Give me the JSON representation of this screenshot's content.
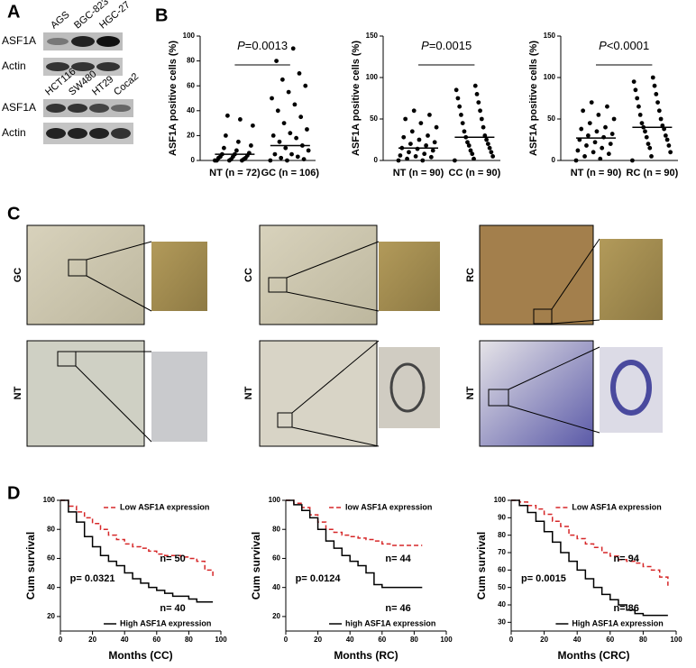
{
  "panel_labels": [
    "A",
    "B",
    "C",
    "D"
  ],
  "blots": [
    {
      "lanes": [
        "AGS",
        "BGC-823",
        "HGC-27"
      ],
      "rows": [
        "ASF1A",
        "Actin"
      ]
    },
    {
      "lanes": [
        "HCT116",
        "SW480",
        "HT29",
        "Coca2"
      ],
      "rows": [
        "ASF1A",
        "Actin"
      ]
    }
  ],
  "micrograph_labels": [
    "GC",
    "CC",
    "RC",
    "NT",
    "NT",
    "NT"
  ],
  "chart_data": [
    {
      "type": "dotplot",
      "y_label": "ASF1A positive cells (%)",
      "annotation": [
        "P",
        "=0.0013"
      ],
      "categories": [
        "NT (n = 72)",
        "GC (n = 106)"
      ],
      "values": [
        [
          0,
          0,
          0,
          0,
          1,
          1,
          2,
          2,
          3,
          3,
          4,
          5,
          5,
          6,
          8,
          10,
          12,
          15,
          20,
          28,
          33,
          36
        ],
        [
          0,
          0,
          1,
          2,
          3,
          5,
          5,
          8,
          10,
          12,
          15,
          18,
          20,
          22,
          25,
          30,
          35,
          40,
          45,
          50,
          55,
          60,
          65,
          70,
          80,
          90
        ]
      ],
      "means": [
        5,
        12
      ],
      "ylim": [
        0,
        100
      ],
      "yticks": [
        0,
        20,
        40,
        60,
        80,
        100
      ],
      "color": "#000000"
    },
    {
      "type": "dotplot",
      "y_label": "ASF1A positive cells (%)",
      "annotation": [
        "P",
        "=0.0015"
      ],
      "categories": [
        "NT (n = 90)",
        "CC (n = 90)"
      ],
      "values": [
        [
          0,
          0,
          2,
          4,
          5,
          6,
          8,
          10,
          12,
          14,
          15,
          18,
          20,
          22,
          25,
          28,
          30,
          35,
          40,
          45,
          50,
          55,
          60
        ],
        [
          0,
          2,
          5,
          8,
          10,
          12,
          15,
          18,
          20,
          22,
          25,
          28,
          30,
          35,
          40,
          45,
          50,
          55,
          60,
          65,
          70,
          75,
          80,
          85,
          90
        ]
      ],
      "means": [
        15,
        28
      ],
      "ylim": [
        0,
        150
      ],
      "yticks": [
        0,
        50,
        100,
        150
      ],
      "color": "#000000"
    },
    {
      "type": "dotplot",
      "y_label": "ASF1A positive cells (%)",
      "annotation": [
        "P",
        "<0.0001"
      ],
      "categories": [
        "NT (n = 90)",
        "RC (n = 90)"
      ],
      "values": [
        [
          0,
          2,
          5,
          8,
          10,
          12,
          15,
          18,
          20,
          22,
          25,
          28,
          30,
          32,
          35,
          38,
          40,
          45,
          50,
          55,
          60,
          65,
          70
        ],
        [
          0,
          5,
          10,
          15,
          18,
          20,
          25,
          28,
          30,
          35,
          38,
          40,
          42,
          45,
          50,
          55,
          60,
          65,
          70,
          75,
          80,
          85,
          90,
          95,
          100
        ]
      ],
      "means": [
        27,
        40
      ],
      "ylim": [
        0,
        150
      ],
      "yticks": [
        0,
        50,
        100,
        150
      ],
      "color": "#000000"
    },
    {
      "type": "survival",
      "x_label": "Months (CC)",
      "y_label": "Cum survival",
      "p_label": "p= 0.0321",
      "n_labels": [
        "n= 50",
        "n= 40"
      ],
      "series": [
        {
          "name": "Low ASF1A expression",
          "color": "#d62728",
          "line_style": "dashed",
          "x": [
            0,
            5,
            10,
            15,
            20,
            25,
            30,
            35,
            40,
            45,
            50,
            55,
            60,
            65,
            70,
            75,
            80,
            85,
            90,
            95
          ],
          "values": [
            100,
            96,
            92,
            88,
            84,
            80,
            76,
            73,
            70,
            68,
            67,
            65,
            63,
            62,
            62,
            61,
            60,
            58,
            52,
            47
          ]
        },
        {
          "name": "High ASF1A expression",
          "color": "#000000",
          "line_style": "solid",
          "x": [
            0,
            5,
            10,
            15,
            20,
            25,
            30,
            35,
            40,
            45,
            50,
            55,
            60,
            65,
            70,
            75,
            80,
            85,
            90,
            95
          ],
          "values": [
            100,
            92,
            85,
            75,
            68,
            62,
            58,
            55,
            50,
            46,
            43,
            40,
            38,
            36,
            34,
            34,
            32,
            30,
            30,
            30
          ]
        }
      ],
      "xlim": [
        0,
        100
      ],
      "xticks": [
        0,
        20,
        40,
        60,
        80,
        100
      ],
      "ylim": [
        10,
        100
      ],
      "yticks": [
        20,
        40,
        60,
        80,
        100
      ]
    },
    {
      "type": "survival",
      "x_label": "Months (RC)",
      "y_label": "Cum survival",
      "p_label": "p= 0.0124",
      "n_labels": [
        "n= 44",
        "n= 46"
      ],
      "series": [
        {
          "name": "low ASF1A expression",
          "color": "#d62728",
          "line_style": "dashed",
          "x": [
            0,
            5,
            10,
            15,
            20,
            25,
            30,
            35,
            40,
            45,
            50,
            55,
            60,
            65,
            70,
            75,
            80,
            85
          ],
          "values": [
            100,
            98,
            95,
            90,
            85,
            80,
            78,
            76,
            75,
            74,
            73,
            72,
            70,
            69,
            69,
            69,
            69,
            69
          ]
        },
        {
          "name": "high ASF1A expression",
          "color": "#000000",
          "line_style": "solid",
          "x": [
            0,
            5,
            10,
            15,
            20,
            25,
            30,
            35,
            40,
            45,
            50,
            55,
            60,
            65,
            70,
            75,
            80,
            85
          ],
          "values": [
            100,
            97,
            93,
            88,
            80,
            72,
            67,
            62,
            58,
            55,
            50,
            42,
            40,
            40,
            40,
            40,
            40,
            40
          ]
        }
      ],
      "xlim": [
        0,
        100
      ],
      "xticks": [
        0,
        20,
        40,
        60,
        80,
        100
      ],
      "ylim": [
        10,
        100
      ],
      "yticks": [
        20,
        40,
        60,
        80,
        100
      ]
    },
    {
      "type": "survival",
      "x_label": "Months (CRC)",
      "y_label": "Cum survival",
      "p_label": "p= 0.0015",
      "n_labels": [
        "n= 94",
        "n= 86"
      ],
      "series": [
        {
          "name": "Low ASF1A expression",
          "color": "#d62728",
          "line_style": "dashed",
          "x": [
            0,
            5,
            10,
            15,
            20,
            25,
            30,
            35,
            40,
            45,
            50,
            55,
            60,
            65,
            70,
            75,
            80,
            85,
            90,
            95
          ],
          "values": [
            100,
            99,
            97,
            95,
            92,
            88,
            85,
            80,
            78,
            75,
            73,
            70,
            68,
            66,
            65,
            64,
            62,
            60,
            56,
            51
          ]
        },
        {
          "name": "High ASF1A expression",
          "color": "#000000",
          "line_style": "solid",
          "x": [
            0,
            5,
            10,
            15,
            20,
            25,
            30,
            35,
            40,
            45,
            50,
            55,
            60,
            65,
            70,
            75,
            80,
            85,
            90,
            95
          ],
          "values": [
            100,
            97,
            93,
            88,
            82,
            76,
            70,
            65,
            60,
            55,
            50,
            46,
            43,
            40,
            37,
            35,
            34,
            34,
            34,
            34
          ]
        }
      ],
      "xlim": [
        0,
        100
      ],
      "xticks": [
        0,
        20,
        40,
        60,
        80,
        100
      ],
      "ylim": [
        25,
        100
      ],
      "yticks": [
        30,
        40,
        50,
        60,
        70,
        80,
        90,
        100
      ]
    }
  ]
}
